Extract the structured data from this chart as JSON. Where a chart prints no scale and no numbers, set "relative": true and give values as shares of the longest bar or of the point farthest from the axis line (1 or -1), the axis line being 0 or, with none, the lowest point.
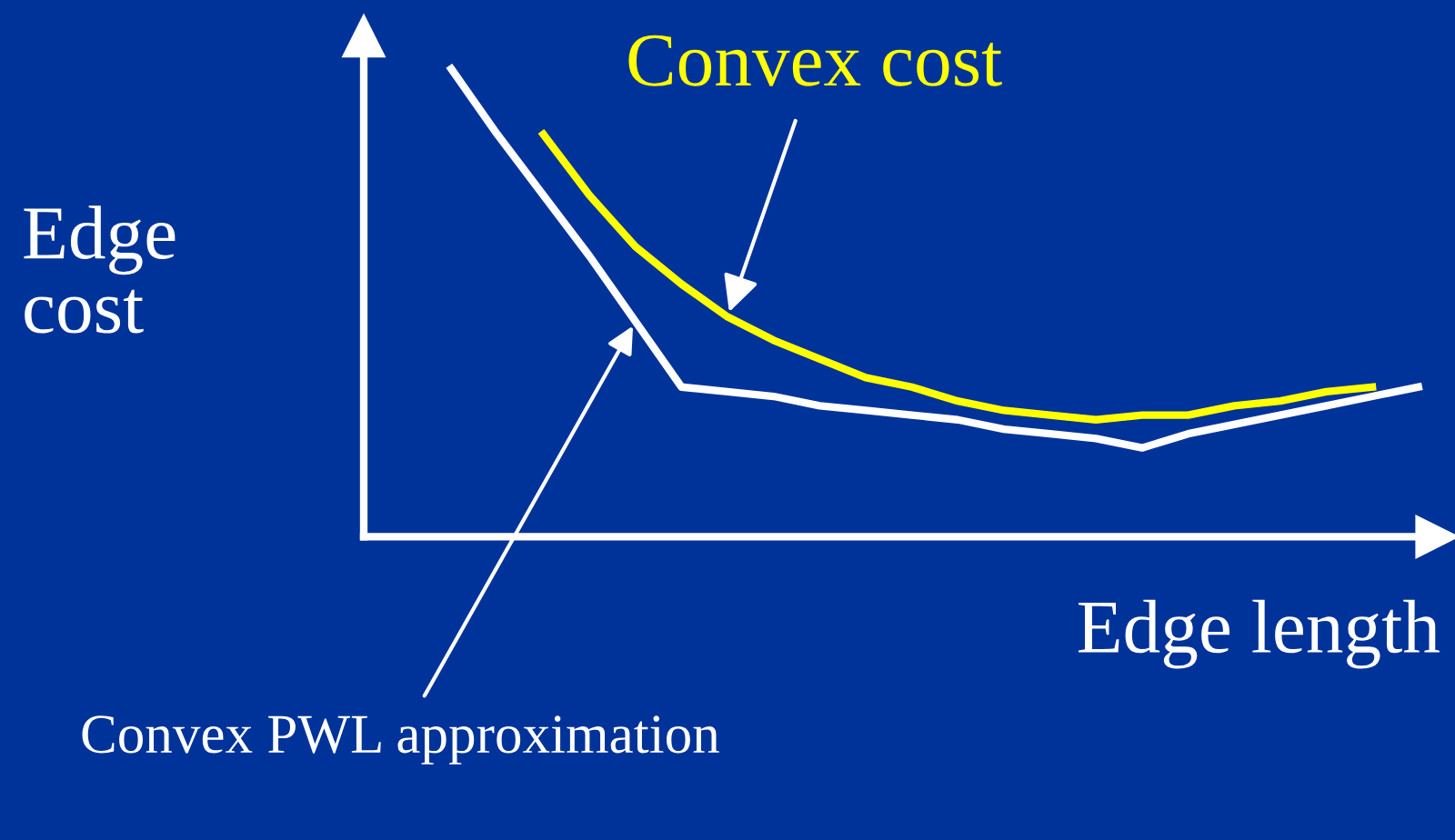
{
  "chart_data": {
    "type": "line",
    "relative": true,
    "xlabel": "Edge length",
    "ylabel": "Edge\ncost",
    "grid": false,
    "legend": false,
    "marker": "none",
    "line_style": "solid",
    "categories": [
      null,
      null,
      null,
      null,
      null,
      null,
      null,
      null,
      null,
      null,
      null,
      null,
      null,
      null,
      null,
      null,
      null,
      null,
      null,
      null,
      null,
      null
    ],
    "series": [
      {
        "name": "Convex cost",
        "color": "#ffff00",
        "values": [
          null,
          null,
          0.86,
          0.73,
          0.62,
          0.54,
          0.47,
          0.42,
          0.38,
          0.34,
          0.32,
          0.29,
          0.27,
          0.26,
          0.25,
          0.26,
          0.26,
          0.28,
          0.29,
          0.31,
          0.32,
          null
        ]
      },
      {
        "name": "Convex PWL approximation",
        "color": "#ffffff",
        "values": [
          1,
          0.86,
          0.73,
          0.6,
          0.46,
          0.32,
          0.31,
          0.3,
          0.28,
          0.27,
          0.26,
          0.25,
          0.23,
          0.22,
          0.21,
          0.19,
          0.22,
          0.24,
          0.26,
          0.28,
          0.3,
          0.32
        ]
      }
    ]
  }
}
